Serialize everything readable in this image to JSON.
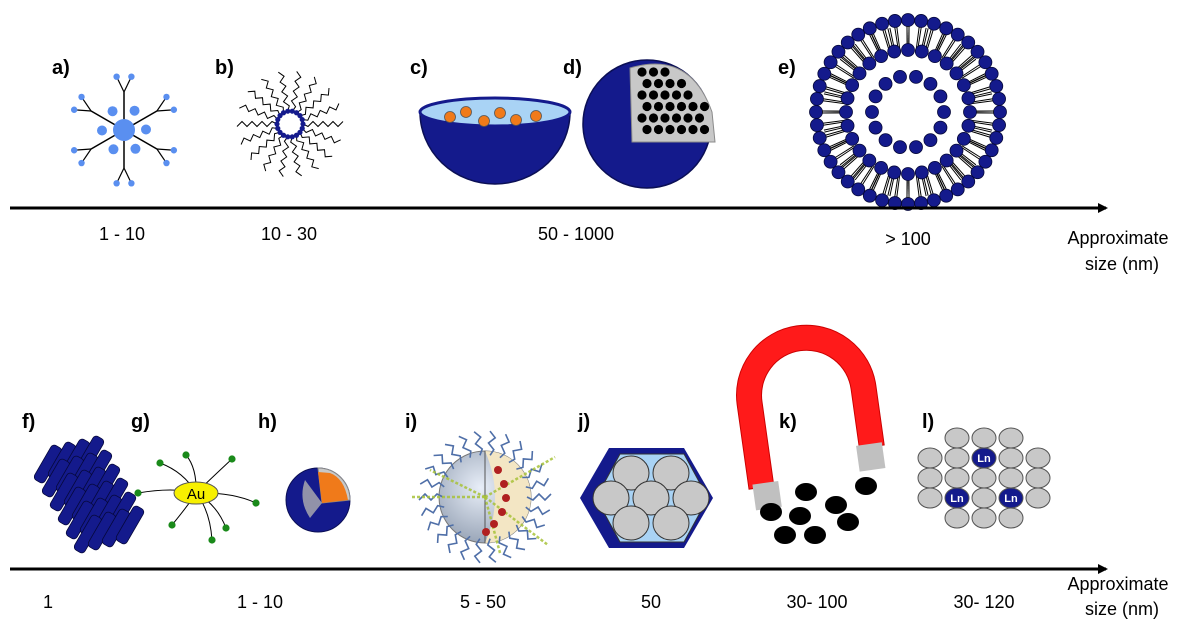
{
  "row1": {
    "panels": [
      {
        "id": "a",
        "label": "a)"
      },
      {
        "id": "b",
        "label": "b)"
      },
      {
        "id": "c",
        "label": "c)"
      },
      {
        "id": "d",
        "label": "d)"
      },
      {
        "id": "e",
        "label": "e)"
      }
    ],
    "sizes": [
      "1 - 10",
      "10 - 30",
      "50 - 1000",
      "> 100"
    ],
    "axis_label_line1": "Approximate",
    "axis_label_line2": "size (nm)"
  },
  "row2": {
    "panels": [
      {
        "id": "f",
        "label": "f)"
      },
      {
        "id": "g",
        "label": "g)"
      },
      {
        "id": "h",
        "label": "h)"
      },
      {
        "id": "i",
        "label": "i)"
      },
      {
        "id": "j",
        "label": "j)"
      },
      {
        "id": "k",
        "label": "k)"
      },
      {
        "id": "l",
        "label": "l)"
      }
    ],
    "sizes": [
      "1",
      "1 - 10",
      "5 - 50",
      "50",
      "30- 100",
      "30- 120"
    ],
    "axis_label_line1": "Approximate",
    "axis_label_line2": "size (nm)"
  },
  "gold_label": "Au",
  "lanthanide_label": "Ln",
  "colors": {
    "navy": "#141a8c",
    "light_blue": "#5a8ff0",
    "pale_blue": "#a9d3f5",
    "orange": "#f07a1a",
    "gray": "#c8c8c8",
    "magnet_red": "#ff1a1a",
    "gold_yellow": "#f7f000",
    "green_dot": "#1a8a1a"
  }
}
